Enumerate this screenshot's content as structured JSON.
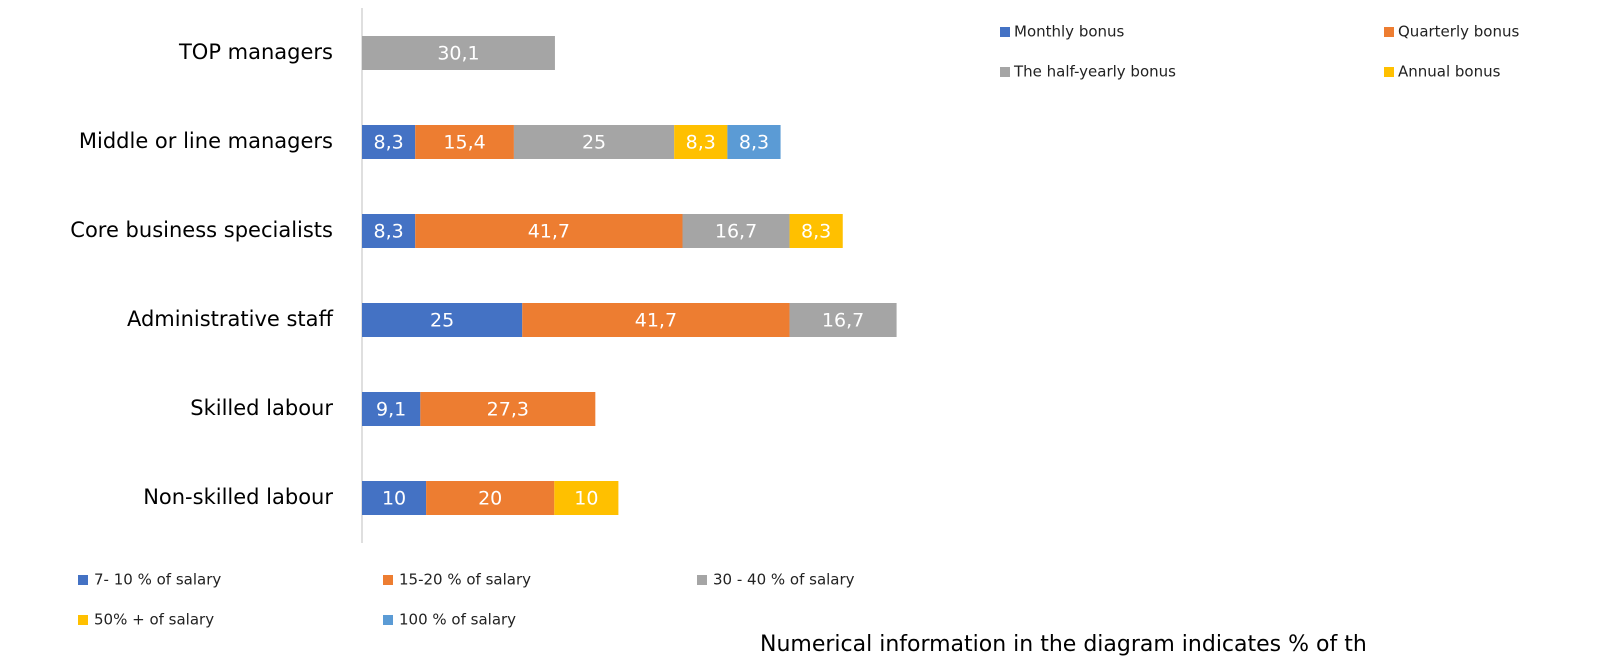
{
  "chart_data": {
    "type": "stacked_barh",
    "categories": [
      "TOP managers",
      "Middle or line managers",
      "Core business specialists",
      "Administrative staff",
      "Skilled labour",
      "Non-skilled labour"
    ],
    "series": [
      {
        "name": "7- 10 % of salary",
        "color": "#4472c4",
        "values": [
          null,
          8.3,
          8.3,
          25,
          9.1,
          10
        ],
        "value_labels": [
          null,
          "8,3",
          "8,3",
          "25",
          "9,1",
          "10"
        ]
      },
      {
        "name": "15-20 % of  salary",
        "color": "#ed7d31",
        "values": [
          null,
          15.4,
          41.7,
          41.7,
          27.3,
          20
        ],
        "value_labels": [
          null,
          "15,4",
          "41,7",
          "41,7",
          "27,3",
          "20"
        ]
      },
      {
        "name": "30 - 40 % of salary",
        "color": "#a5a5a5",
        "values": [
          30.1,
          25,
          16.7,
          16.7,
          null,
          null
        ],
        "value_labels": [
          "30,1",
          "25",
          "16,7",
          "16,7",
          null,
          null
        ]
      },
      {
        "name": "50% + of salary",
        "color": "#ffc000",
        "values": [
          null,
          8.3,
          8.3,
          null,
          null,
          10
        ],
        "value_labels": [
          null,
          "8,3",
          "8,3",
          null,
          null,
          "10"
        ]
      },
      {
        "name": "100 % of salary",
        "color": "#5b9bd5",
        "values": [
          null,
          8.3,
          null,
          null,
          null,
          null
        ],
        "value_labels": [
          null,
          "8,3",
          null,
          null,
          null,
          null
        ]
      }
    ],
    "xlim": [
      0,
      100
    ],
    "bonus_legend": [
      {
        "name": "Monthly bonus",
        "color": "#4472c4"
      },
      {
        "name": "Quarterly bonus",
        "color": "#ed7d31"
      },
      {
        "name": "The half-yearly bonus",
        "color": "#a5a5a5"
      },
      {
        "name": "Annual bonus",
        "color": "#ffc000"
      }
    ],
    "note": "Numerical information in the diagram indicates % of th"
  }
}
